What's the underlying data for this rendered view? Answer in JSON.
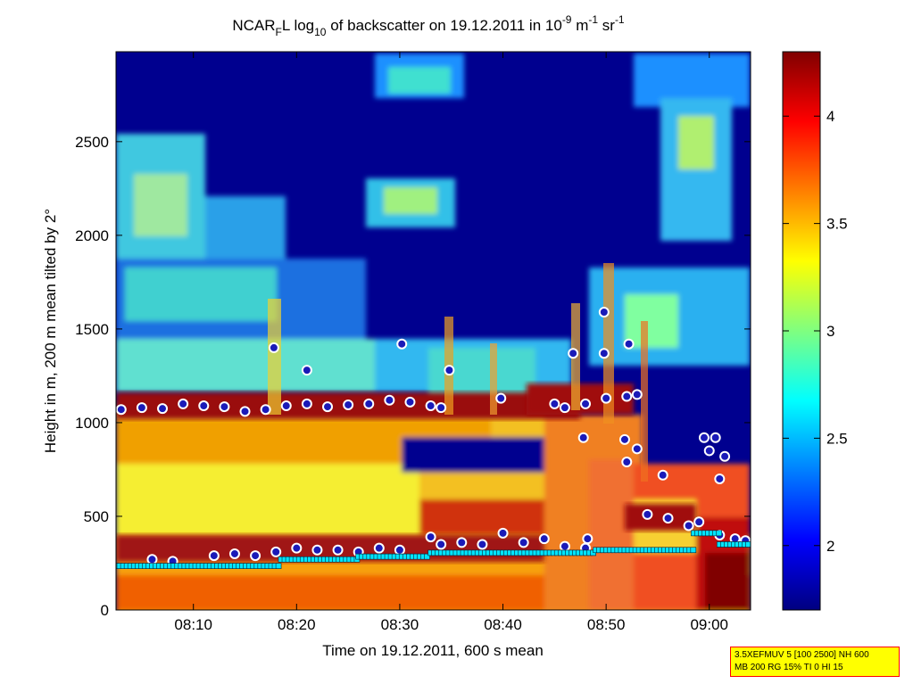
{
  "chart_data": {
    "type": "heatmap",
    "title": {
      "main": "NCAR",
      "sub1": "F",
      "part2": "L log",
      "sub2": "10",
      "part3": " of backscatter on 19.12.2011 in 10",
      "sup1": "-9",
      "part4": " m",
      "sup2": "-1",
      "part5": " sr",
      "sup3": "-1"
    },
    "xlabel": "Time on 19.12.2011, 600 s mean",
    "ylabel": "Height in m, 200 m mean tilted by 2°",
    "x_ticks": [
      "08:10",
      "08:20",
      "08:30",
      "08:40",
      "08:50",
      "09:00"
    ],
    "x_tick_minutes": [
      10,
      20,
      30,
      40,
      50,
      60
    ],
    "xlim_minutes_after_0800": [
      2.5,
      64.0
    ],
    "y_ticks": [
      "0",
      "500",
      "1000",
      "1500",
      "2000",
      "2500"
    ],
    "y_tick_values": [
      0,
      500,
      1000,
      1500,
      2000,
      2500
    ],
    "ylim": [
      0,
      2980
    ],
    "colorbar": {
      "ticks": [
        "2",
        "2.5",
        "3",
        "3.5",
        "4"
      ],
      "tick_values": [
        2,
        2.5,
        3,
        3.5,
        4
      ],
      "range": [
        1.7,
        4.3
      ]
    },
    "series": [
      {
        "marker": "circle",
        "color": "#1a1ab8",
        "edge": "#ffffff",
        "points": [
          [
            3,
            1070
          ],
          [
            5,
            1080
          ],
          [
            7,
            1075
          ],
          [
            9,
            1100
          ],
          [
            11,
            1090
          ],
          [
            13,
            1085
          ],
          [
            15,
            1060
          ],
          [
            17,
            1070
          ],
          [
            19,
            1090
          ],
          [
            21,
            1100
          ],
          [
            23,
            1085
          ],
          [
            25,
            1095
          ],
          [
            27,
            1100
          ],
          [
            29,
            1120
          ],
          [
            31,
            1110
          ],
          [
            33,
            1090
          ],
          [
            34,
            1080
          ],
          [
            45,
            1100
          ],
          [
            46,
            1080
          ],
          [
            48,
            1100
          ],
          [
            50,
            1130
          ],
          [
            52,
            1140
          ],
          [
            53,
            1150
          ],
          [
            17.8,
            1400
          ],
          [
            21,
            1280
          ],
          [
            30.2,
            1420
          ],
          [
            34.8,
            1280
          ],
          [
            39.8,
            1130
          ],
          [
            46.8,
            1370
          ],
          [
            49.8,
            1590
          ],
          [
            49.8,
            1370
          ],
          [
            52.2,
            1420
          ],
          [
            47.8,
            920
          ],
          [
            51.8,
            910
          ],
          [
            52,
            790
          ],
          [
            53,
            860
          ],
          [
            55.5,
            720
          ],
          [
            59.5,
            920
          ],
          [
            60,
            850
          ],
          [
            60.6,
            920
          ],
          [
            61.5,
            820
          ],
          [
            61,
            700
          ],
          [
            6,
            270
          ],
          [
            8,
            260
          ],
          [
            12,
            290
          ],
          [
            14,
            300
          ],
          [
            16,
            290
          ],
          [
            18,
            310
          ],
          [
            20,
            330
          ],
          [
            22,
            320
          ],
          [
            24,
            320
          ],
          [
            26,
            310
          ],
          [
            28,
            330
          ],
          [
            30,
            320
          ],
          [
            33,
            390
          ],
          [
            34,
            350
          ],
          [
            36,
            360
          ],
          [
            38,
            350
          ],
          [
            40,
            410
          ],
          [
            42,
            360
          ],
          [
            44,
            380
          ],
          [
            46,
            340
          ],
          [
            48,
            330
          ],
          [
            48.2,
            380
          ],
          [
            54,
            510
          ],
          [
            56,
            490
          ],
          [
            58,
            450
          ],
          [
            59,
            470
          ],
          [
            61,
            400
          ],
          [
            62.5,
            380
          ],
          [
            63.5,
            370
          ]
        ]
      },
      {
        "marker": "square",
        "color": "#00e5ff",
        "edge": "#102030",
        "points": [
          [
            2.5,
            235
          ],
          [
            18.5,
            235
          ],
          [
            18.5,
            270
          ],
          [
            26,
            270
          ],
          [
            26,
            285
          ],
          [
            33,
            285
          ],
          [
            33,
            305
          ],
          [
            49,
            305
          ],
          [
            49,
            320
          ],
          [
            58.5,
            320
          ],
          [
            58.5,
            410
          ],
          [
            61,
            410
          ],
          [
            61,
            350
          ],
          [
            64,
            350
          ]
        ]
      }
    ]
  },
  "info_box": {
    "line1": "3.5XEFMUV 5 [100 2500] NH 600",
    "line2": "MB 200 RG 15% TI 0 HI 15"
  },
  "colors": {
    "background_field": "#00008f",
    "colormap": [
      "#000080",
      "#0000ff",
      "#00ffff",
      "#ffff00",
      "#ff0000",
      "#800000"
    ]
  }
}
